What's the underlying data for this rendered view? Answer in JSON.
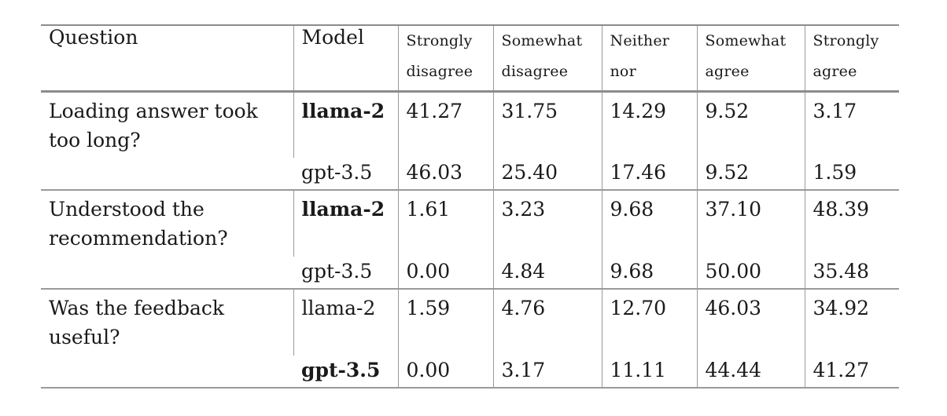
{
  "table": {
    "headers": {
      "question": "Question",
      "model": "Model",
      "responses": [
        {
          "line1": "Strongly",
          "line2": "disagree"
        },
        {
          "line1": "Somewhat",
          "line2": "disagree"
        },
        {
          "line1": "Neither",
          "line2": "nor"
        },
        {
          "line1": "Somewhat",
          "line2": "agree"
        },
        {
          "line1": "Strongly",
          "line2": "agree"
        }
      ]
    },
    "groups": [
      {
        "question": "Loading answer took too long?",
        "rows": [
          {
            "model": "llama-2",
            "best": true,
            "values": [
              "41.27",
              "31.75",
              "14.29",
              "9.52",
              "3.17"
            ]
          },
          {
            "model": "gpt-3.5",
            "best": false,
            "values": [
              "46.03",
              "25.40",
              "17.46",
              "9.52",
              "1.59"
            ]
          }
        ]
      },
      {
        "question": "Understood the recommendation?",
        "rows": [
          {
            "model": "llama-2",
            "best": true,
            "values": [
              "1.61",
              "3.23",
              "9.68",
              "37.10",
              "48.39"
            ]
          },
          {
            "model": "gpt-3.5",
            "best": false,
            "values": [
              "0.00",
              "4.84",
              "9.68",
              "50.00",
              "35.48"
            ]
          }
        ]
      },
      {
        "question": "Was the feedback useful?",
        "rows": [
          {
            "model": "llama-2",
            "best": false,
            "values": [
              "1.59",
              "4.76",
              "12.70",
              "46.03",
              "34.92"
            ]
          },
          {
            "model": "gpt-3.5",
            "best": true,
            "values": [
              "0.00",
              "3.17",
              "11.11",
              "44.44",
              "41.27"
            ]
          }
        ]
      }
    ]
  }
}
